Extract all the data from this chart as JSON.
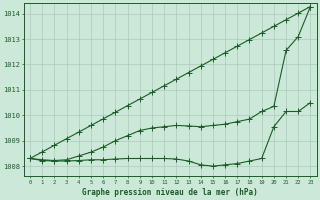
{
  "xlabel": "Graphe pression niveau de la mer (hPa)",
  "ylim": [
    1007.6,
    1014.4
  ],
  "xlim": [
    -0.5,
    23.5
  ],
  "yticks": [
    1008,
    1009,
    1010,
    1011,
    1012,
    1013,
    1014
  ],
  "xticks": [
    0,
    1,
    2,
    3,
    4,
    5,
    6,
    7,
    8,
    9,
    10,
    11,
    12,
    13,
    14,
    15,
    16,
    17,
    18,
    19,
    20,
    21,
    22,
    23
  ],
  "xtick_labels": [
    "0",
    "1",
    "2",
    "3",
    "4",
    "5",
    "6",
    "7",
    "8",
    "9",
    "10",
    "11",
    "12",
    "13",
    "14",
    "15",
    "16",
    "17",
    "18",
    "19",
    "20",
    "21",
    "22",
    "23"
  ],
  "bg_color": "#cce8d8",
  "grid_color": "#aacab8",
  "line_color": "#1a5c28",
  "series_straight": [
    1008.3,
    1008.56,
    1008.82,
    1009.08,
    1009.34,
    1009.6,
    1009.86,
    1010.12,
    1010.38,
    1010.64,
    1010.9,
    1011.16,
    1011.42,
    1011.68,
    1011.94,
    1012.2,
    1012.46,
    1012.72,
    1012.98,
    1013.24,
    1013.5,
    1013.76,
    1014.02,
    1014.28
  ],
  "series_upper": [
    1008.3,
    1008.25,
    1008.22,
    1008.25,
    1008.4,
    1008.55,
    1008.75,
    1009.0,
    1009.2,
    1009.4,
    1009.5,
    1009.55,
    1009.6,
    1009.58,
    1009.55,
    1009.6,
    1009.65,
    1009.75,
    1009.85,
    1010.15,
    1010.35,
    1012.55,
    1013.1,
    1014.28
  ],
  "series_lower": [
    1008.3,
    1008.22,
    1008.2,
    1008.2,
    1008.22,
    1008.25,
    1008.25,
    1008.28,
    1008.3,
    1008.3,
    1008.3,
    1008.3,
    1008.28,
    1008.2,
    1008.05,
    1008.0,
    1008.05,
    1008.1,
    1008.2,
    1008.3,
    1009.55,
    1010.15,
    1010.15,
    1010.5
  ],
  "line_width": 0.8,
  "marker_size": 2.2
}
